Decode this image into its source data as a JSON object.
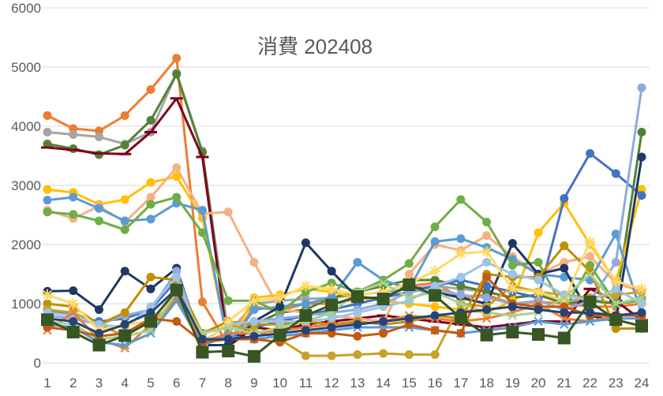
{
  "chart_data": {
    "type": "line",
    "title": "消費 202408",
    "xlabel": "",
    "ylabel": "",
    "ylim": [
      0,
      6000
    ],
    "yticks": [
      0,
      1000,
      2000,
      3000,
      4000,
      5000,
      6000
    ],
    "x": [
      "1",
      "2",
      "3",
      "4",
      "5",
      "6",
      "7",
      "8",
      "9",
      "10",
      "11",
      "12",
      "13",
      "14",
      "15",
      "16",
      "17",
      "18",
      "19",
      "20",
      "21",
      "22",
      "23",
      "24"
    ],
    "grid": true,
    "legend": "none",
    "series": [
      {
        "color": "#ED7D31",
        "marker": "circle",
        "values": [
          4180,
          3960,
          3920,
          4180,
          4620,
          5150,
          1030,
          300,
          950,
          880,
          1000,
          1000,
          1080,
          1100,
          1300,
          1350,
          1100,
          1150,
          1000,
          1030,
          1000,
          950,
          950,
          1000
        ]
      },
      {
        "color": "#A5A5A5",
        "marker": "circle",
        "values": [
          3900,
          3860,
          3820,
          3700,
          3900,
          4900,
          3580,
          500,
          1000,
          1050,
          1080,
          1100,
          1150,
          1200,
          1250,
          1300,
          1250,
          1200,
          1100,
          1150,
          1050,
          1080,
          1000,
          1100
        ]
      },
      {
        "color": "#548235",
        "marker": "circle",
        "values": [
          3700,
          3620,
          3520,
          3680,
          4100,
          4880,
          3560,
          300,
          650,
          850,
          900,
          1100,
          1200,
          1300,
          1400,
          1400,
          1300,
          1200,
          1100,
          1150,
          1000,
          1050,
          1000,
          3900
        ]
      },
      {
        "color": "#7F0020",
        "marker": "bar",
        "values": [
          3640,
          3600,
          3540,
          3530,
          3900,
          4470,
          3480,
          280,
          600,
          550,
          650,
          700,
          750,
          800,
          750,
          700,
          650,
          600,
          650,
          700,
          700,
          1250,
          1050,
          720
        ]
      },
      {
        "color": "#FFC000",
        "marker": "circle",
        "values": [
          2930,
          2880,
          2680,
          2760,
          3050,
          3150,
          2450,
          300,
          1100,
          1150,
          1250,
          1200,
          1100,
          1050,
          1000,
          950,
          900,
          850,
          1050,
          2200,
          2700,
          2000,
          1380,
          2930
        ]
      },
      {
        "color": "#F4B183",
        "marker": "circle",
        "values": [
          2580,
          2440,
          2650,
          2380,
          2800,
          3300,
          2520,
          2550,
          1700,
          900,
          850,
          800,
          750,
          700,
          1500,
          2000,
          1900,
          2150,
          1800,
          1500,
          1700,
          1800,
          1350,
          1200
        ]
      },
      {
        "color": "#5B9BD5",
        "marker": "circle",
        "values": [
          2750,
          2800,
          2610,
          2400,
          2430,
          2700,
          2580,
          300,
          900,
          950,
          1000,
          1100,
          1700,
          1400,
          1250,
          2050,
          2100,
          1950,
          1750,
          1500,
          1450,
          1400,
          2180,
          820
        ]
      },
      {
        "color": "#70AD47",
        "marker": "circle",
        "values": [
          2550,
          2510,
          2400,
          2250,
          2680,
          2800,
          2200,
          1050,
          1050,
          850,
          1200,
          1350,
          1200,
          1400,
          1680,
          2300,
          2760,
          2380,
          1650,
          1700,
          900,
          1650,
          1000,
          1050
        ]
      },
      {
        "color": "#4472C4",
        "marker": "circle",
        "values": [
          900,
          800,
          700,
          750,
          900,
          1400,
          400,
          400,
          600,
          700,
          800,
          900,
          1000,
          1100,
          1200,
          1300,
          1400,
          1300,
          1200,
          1100,
          2780,
          3540,
          3200,
          2830
        ]
      },
      {
        "color": "#1F3864",
        "marker": "circle",
        "values": [
          1210,
          1220,
          900,
          1550,
          1250,
          1600,
          300,
          300,
          700,
          950,
          2030,
          1550,
          1100,
          1100,
          1300,
          1200,
          1100,
          1000,
          2020,
          1500,
          1600,
          800,
          700,
          3480
        ]
      },
      {
        "color": "#8FAADC",
        "marker": "circle",
        "values": [
          800,
          750,
          650,
          800,
          900,
          1550,
          350,
          450,
          700,
          750,
          800,
          850,
          900,
          1000,
          1200,
          1250,
          1150,
          1100,
          1000,
          1050,
          900,
          1050,
          1700,
          4650
        ]
      },
      {
        "color": "#BF9000",
        "marker": "circle",
        "values": [
          1000,
          950,
          650,
          850,
          1450,
          1400,
          500,
          700,
          650,
          650,
          700,
          650,
          700,
          650,
          700,
          800,
          750,
          1500,
          1450,
          1450,
          1980,
          1550,
          580,
          580
        ]
      },
      {
        "color": "#C9A227",
        "marker": "circle",
        "values": [
          900,
          850,
          650,
          450,
          550,
          1100,
          350,
          650,
          550,
          400,
          120,
          120,
          140,
          160,
          140,
          140,
          1000,
          950,
          1300,
          1200,
          1150,
          1100,
          1150,
          1200
        ]
      },
      {
        "color": "#9DC3E6",
        "marker": "circle",
        "values": [
          850,
          800,
          650,
          600,
          950,
          1450,
          350,
          650,
          700,
          700,
          700,
          750,
          850,
          950,
          1050,
          1300,
          1450,
          1700,
          1500,
          1400,
          1150,
          1050,
          1250,
          1000
        ]
      },
      {
        "color": "#FFD966",
        "marker": "star",
        "values": [
          1150,
          1000,
          550,
          650,
          700,
          1200,
          300,
          700,
          1050,
          1100,
          1300,
          1250,
          1150,
          1200,
          1350,
          1550,
          1850,
          1880,
          1250,
          1200,
          1050,
          2050,
          1380,
          1250
        ]
      },
      {
        "color": "#ED7D31",
        "marker": "x",
        "values": [
          550,
          850,
          400,
          250,
          650,
          1100,
          350,
          500,
          500,
          550,
          600,
          650,
          650,
          700,
          800,
          750,
          700,
          750,
          850,
          1000,
          750,
          700,
          800,
          800
        ]
      },
      {
        "color": "#5B9BD5",
        "marker": "x",
        "values": [
          650,
          600,
          350,
          300,
          500,
          1050,
          300,
          450,
          400,
          450,
          500,
          550,
          600,
          600,
          600,
          550,
          500,
          550,
          600,
          700,
          650,
          700,
          750,
          750
        ]
      },
      {
        "color": "#A9D18E",
        "marker": "x",
        "values": [
          700,
          650,
          400,
          450,
          550,
          1200,
          500,
          600,
          500,
          600,
          700,
          850,
          1200,
          1350,
          1100,
          1200,
          1000,
          850,
          800,
          850,
          1100,
          1500,
          1000,
          1100
        ]
      },
      {
        "color": "#C55A11",
        "marker": "circle",
        "values": [
          600,
          550,
          450,
          500,
          750,
          700,
          350,
          400,
          400,
          350,
          500,
          500,
          450,
          500,
          650,
          550,
          500,
          1450,
          1000,
          950,
          950,
          800,
          800,
          800
        ]
      },
      {
        "color": "#264478",
        "marker": "circle",
        "values": [
          750,
          700,
          500,
          650,
          850,
          1250,
          400,
          400,
          450,
          500,
          550,
          600,
          650,
          700,
          750,
          800,
          850,
          900,
          950,
          900,
          850,
          850,
          800,
          850
        ]
      },
      {
        "color": "#375623",
        "marker": "square",
        "values": [
          730,
          520,
          300,
          460,
          700,
          1230,
          180,
          200,
          110,
          470,
          800,
          980,
          1120,
          1080,
          1320,
          1140,
          760,
          470,
          520,
          480,
          420,
          1030,
          730,
          620
        ]
      }
    ]
  }
}
